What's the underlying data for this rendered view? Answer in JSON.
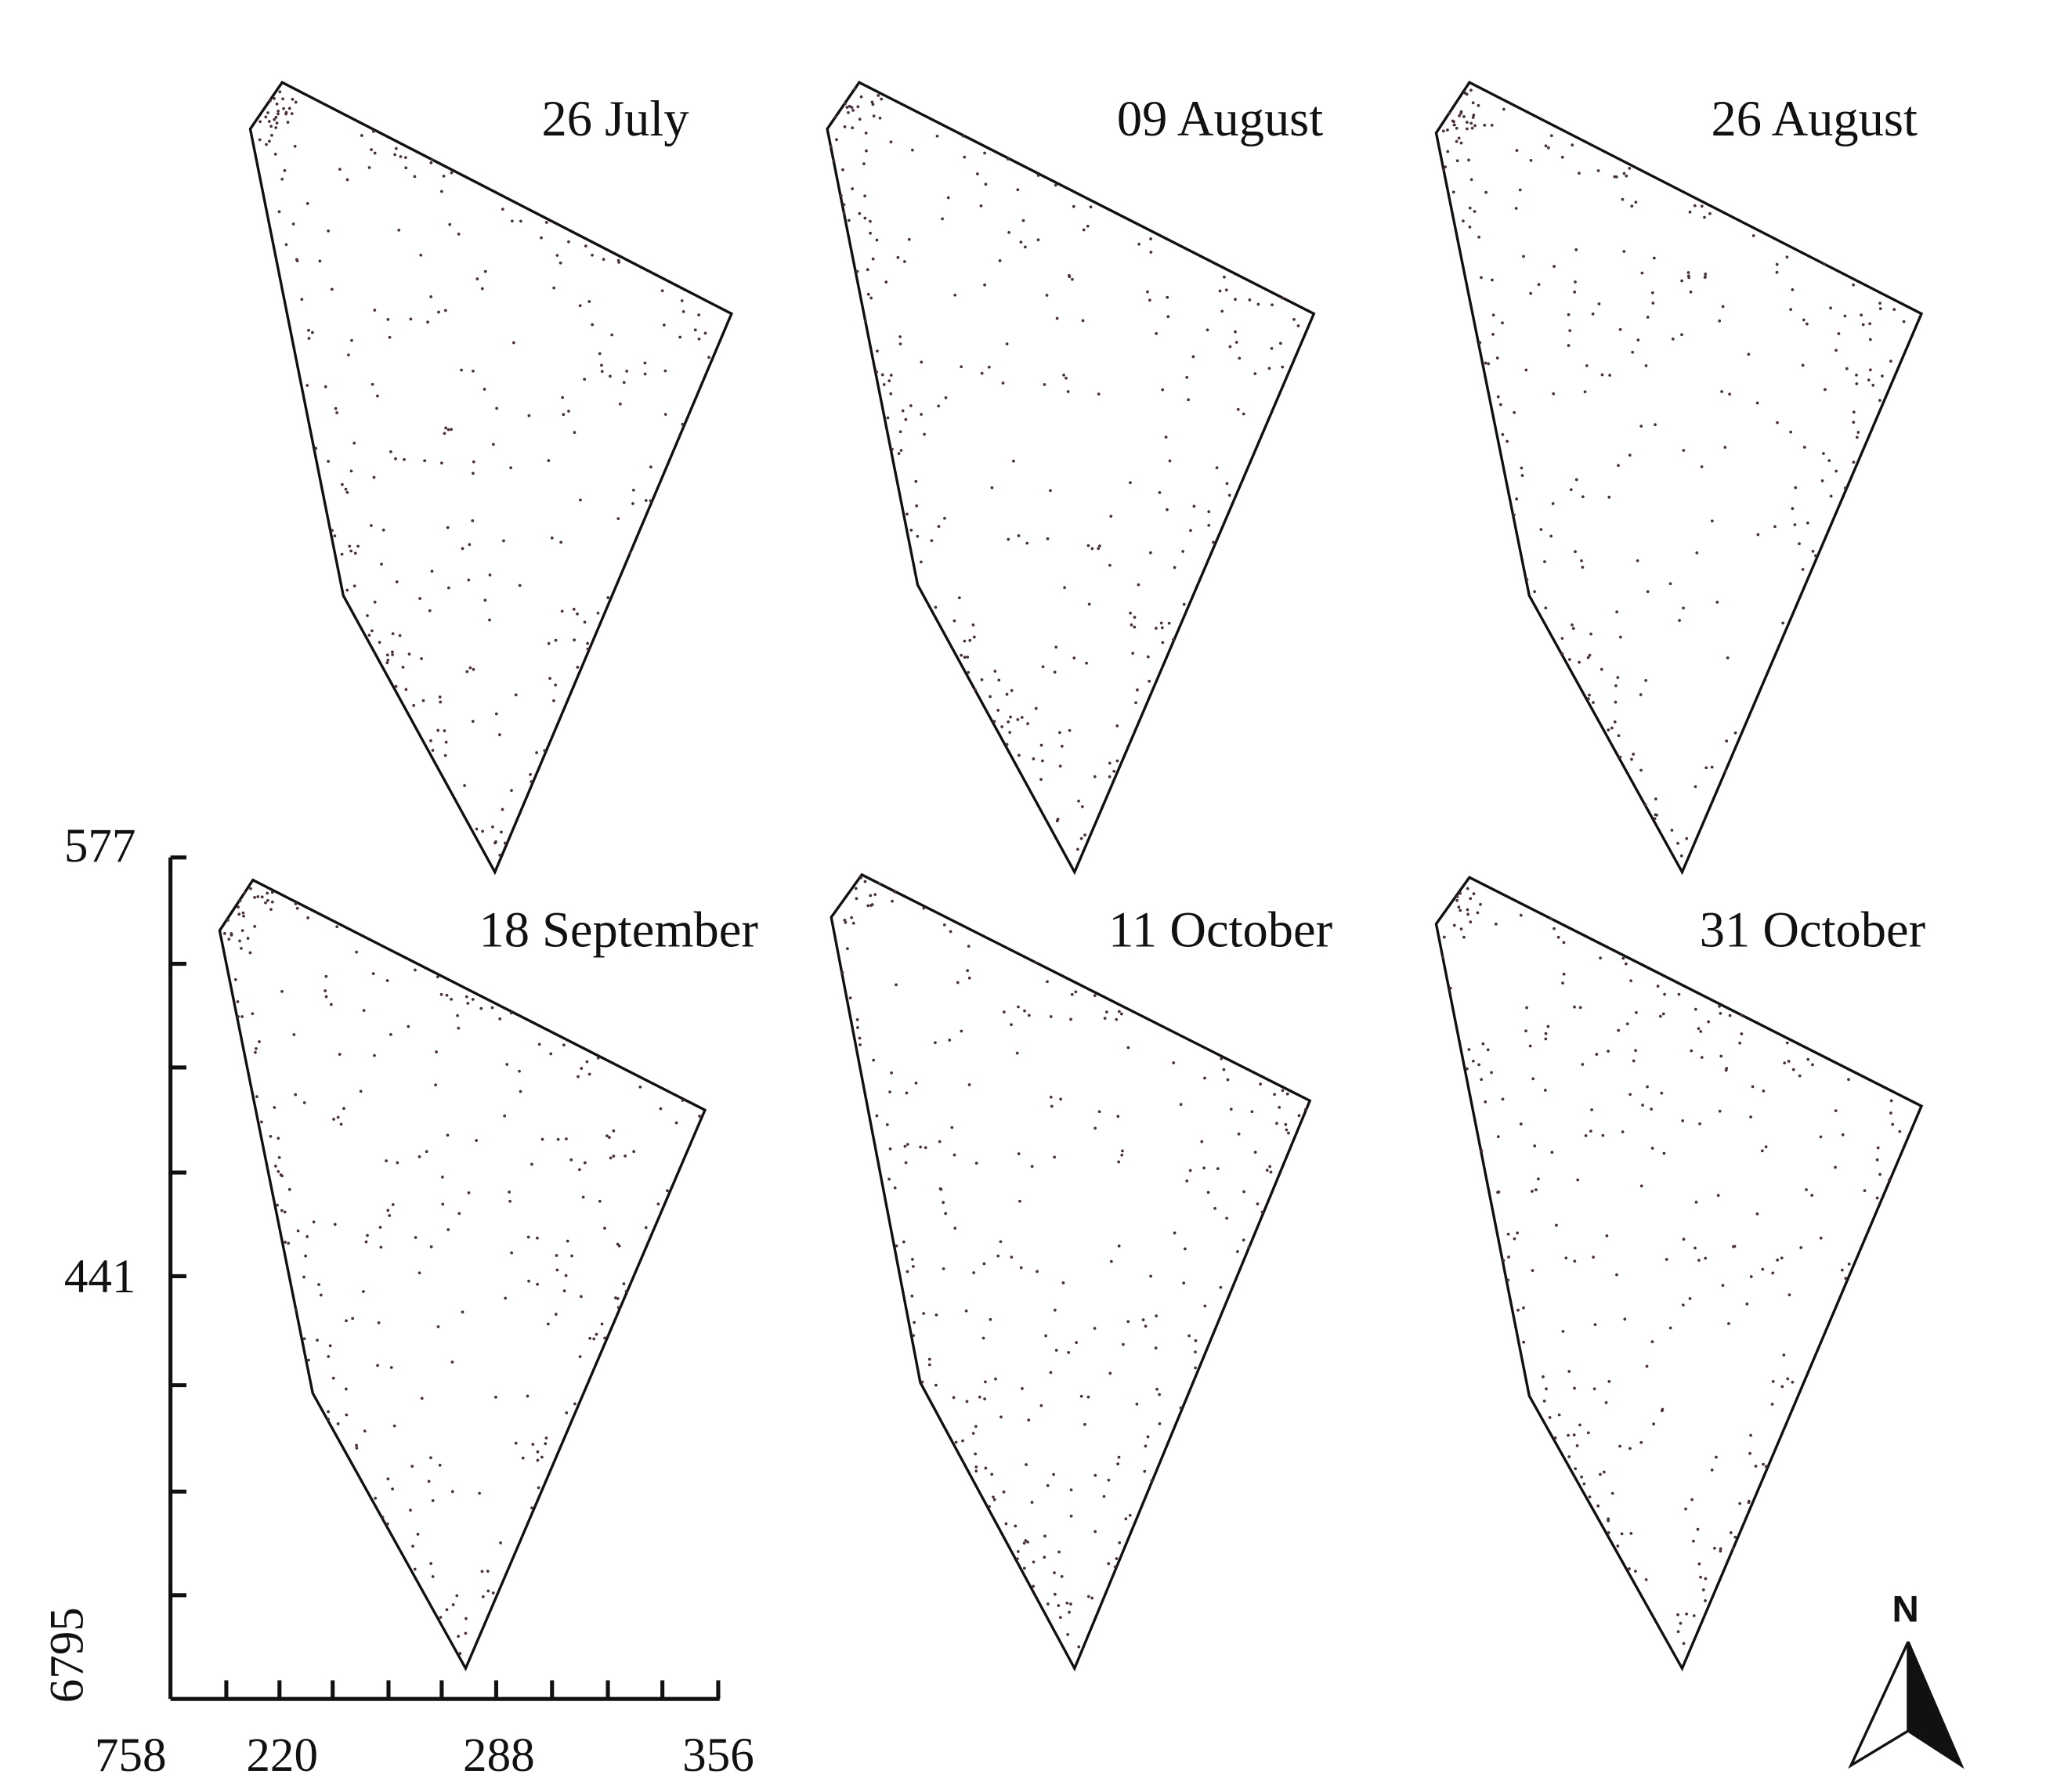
{
  "panels": [
    {
      "label": "26 July"
    },
    {
      "label": "09 August"
    },
    {
      "label": "26 August"
    },
    {
      "label": "18 September"
    },
    {
      "label": "11 October"
    },
    {
      "label": "31 October"
    }
  ],
  "axis": {
    "y_labels": [
      "577",
      "441",
      "6795"
    ],
    "x_labels": [
      "758",
      "220",
      "288",
      "356"
    ]
  },
  "north": "N"
}
